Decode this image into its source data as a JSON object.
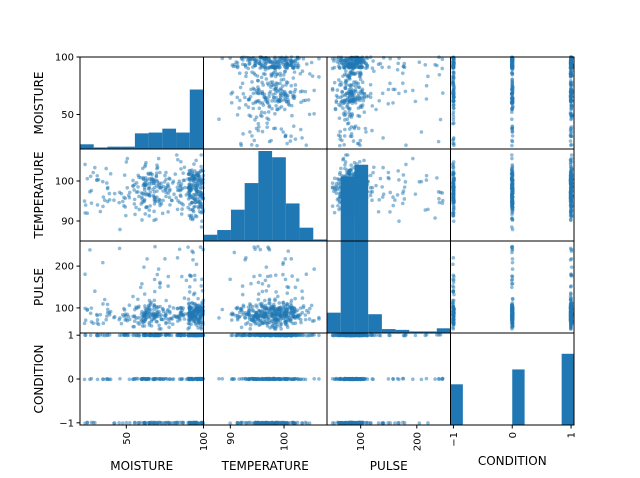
{
  "chart_data": {
    "type": "scatter_matrix",
    "variables": [
      "MOISTURE",
      "TEMPERATURE",
      "PULSE",
      "CONDITION"
    ],
    "ranges": {
      "MOISTURE": [
        20,
        100
      ],
      "TEMPERATURE": [
        85,
        108
      ],
      "PULSE": [
        40,
        260
      ],
      "CONDITION": [
        -1.05,
        1.05
      ]
    },
    "ticks": {
      "MOISTURE": [
        50,
        100
      ],
      "TEMPERATURE": [
        90,
        100
      ],
      "PULSE": [
        100,
        200
      ],
      "CONDITION": [
        -1,
        0,
        1
      ]
    },
    "tick_labels": {
      "MOISTURE": [
        "50",
        "100"
      ],
      "TEMPERATURE": [
        "90",
        "100"
      ],
      "PULSE": [
        "100",
        "200"
      ],
      "CONDITION": [
        "−1",
        "0",
        "1"
      ]
    },
    "histograms": {
      "MOISTURE": [
        6,
        2,
        3,
        3,
        20,
        21,
        26,
        21,
        76
      ],
      "TEMPERATURE": [
        8,
        14,
        40,
        74,
        115,
        107,
        48,
        17,
        2
      ],
      "PULSE": [
        26,
        200,
        215,
        24,
        5,
        4,
        2,
        2,
        6
      ],
      "CONDITION": [
        52,
        0,
        0,
        0,
        0,
        71,
        0,
        0,
        0,
        91
      ]
    },
    "hist_range_max": 115,
    "scatter_style": {
      "color": "#1f77b4",
      "alpha": 0.5
    },
    "n_points": 420,
    "grid": false,
    "legend": "none"
  }
}
